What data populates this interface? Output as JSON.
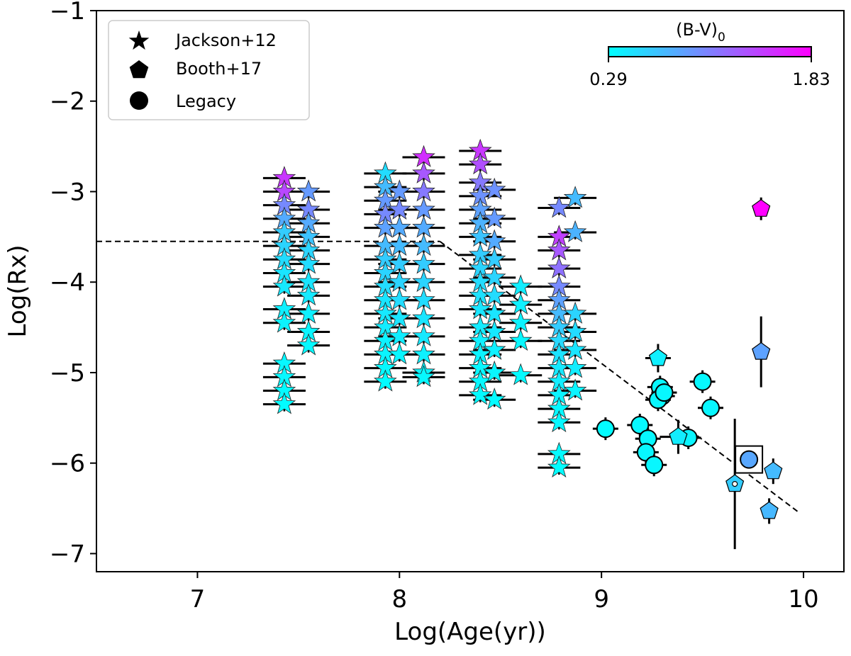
{
  "chart_data": {
    "type": "scatter",
    "xlabel": "Log(Age(yr))",
    "ylabel": "Log(Rx)",
    "xlim": [
      6.5,
      10.2
    ],
    "ylim": [
      -7.2,
      -1.0
    ],
    "xticks": [
      7,
      8,
      9,
      10
    ],
    "yticks": [
      -1,
      -2,
      -3,
      -4,
      -5,
      -6,
      -7
    ],
    "xtick_labels": [
      "7",
      "8",
      "9",
      "10"
    ],
    "ytick_labels": [
      "−1",
      "−2",
      "−3",
      "−4",
      "−5",
      "−6",
      "−7"
    ],
    "grid": false,
    "legend": {
      "position": "top-left",
      "entries": [
        {
          "label": "Jackson+12",
          "marker": "star"
        },
        {
          "label": "Booth+17",
          "marker": "pentagon"
        },
        {
          "label": "Legacy",
          "marker": "circle"
        }
      ]
    },
    "colorbar": {
      "label": "(B-V)",
      "label_subscript": "0",
      "min": 0.29,
      "max": 1.83,
      "min_label": "0.29",
      "max_label": "1.83",
      "cmap_start": "#00ffff",
      "cmap_end": "#ff00ff",
      "position": "top-right"
    },
    "fit_line": {
      "style": "dashed",
      "segments": [
        {
          "x": [
            6.5,
            8.2
          ],
          "y": [
            -3.55,
            -3.55
          ]
        },
        {
          "x": [
            8.2,
            9.98
          ],
          "y": [
            -3.55,
            -6.55
          ]
        }
      ]
    },
    "series": [
      {
        "name": "Jackson+12",
        "marker": "star",
        "clusters": [
          {
            "x": 7.43,
            "y": [
              -2.85,
              -3.0,
              -3.15,
              -3.3,
              -3.45,
              -3.6,
              -3.75,
              -3.9,
              -4.05,
              -4.3,
              -4.45,
              -4.9,
              -5.05,
              -5.2,
              -5.35
            ],
            "bv": [
              1.5,
              1.4,
              1.0,
              0.8,
              0.6,
              0.55,
              0.5,
              0.45,
              0.42,
              0.38,
              0.36,
              0.34,
              0.33,
              0.32,
              0.31
            ]
          },
          {
            "x": 7.55,
            "y": [
              -3.0,
              -3.2,
              -3.35,
              -3.5,
              -3.65,
              -3.8,
              -4.0,
              -4.15,
              -4.35,
              -4.55,
              -4.7
            ],
            "bv": [
              0.9,
              1.0,
              0.8,
              0.65,
              0.55,
              0.5,
              0.45,
              0.42,
              0.38,
              0.35,
              0.33
            ]
          },
          {
            "x": 7.93,
            "y": [
              -2.8,
              -2.95,
              -3.1,
              -3.25,
              -3.4,
              -3.6,
              -3.75,
              -3.9,
              -4.05,
              -4.2,
              -4.35,
              -4.5,
              -4.65,
              -4.8,
              -4.95,
              -5.1
            ],
            "bv": [
              0.5,
              0.7,
              0.9,
              1.0,
              0.85,
              0.7,
              0.6,
              0.55,
              0.5,
              0.45,
              0.42,
              0.4,
              0.37,
              0.35,
              0.33,
              0.31
            ]
          },
          {
            "x": 8.0,
            "y": [
              -3.0,
              -3.2,
              -3.4,
              -3.6,
              -3.8,
              -4.0,
              -4.2,
              -4.4,
              -4.6,
              -4.8
            ],
            "bv": [
              0.9,
              1.0,
              0.8,
              0.7,
              0.6,
              0.55,
              0.5,
              0.45,
              0.4,
              0.35
            ]
          },
          {
            "x": 8.12,
            "y": [
              -2.62,
              -2.8,
              -3.0,
              -3.2,
              -3.4,
              -3.6,
              -3.8,
              -4.0,
              -4.2,
              -4.4,
              -4.6,
              -4.8,
              -5.0,
              -5.05
            ],
            "bv": [
              1.55,
              1.3,
              1.1,
              0.9,
              0.8,
              0.7,
              0.6,
              0.55,
              0.5,
              0.45,
              0.42,
              0.38,
              0.35,
              0.33
            ]
          },
          {
            "x": 8.4,
            "y": [
              -2.55,
              -2.7,
              -2.9,
              -3.05,
              -3.2,
              -3.35,
              -3.5,
              -3.7,
              -3.85,
              -4.0,
              -4.15,
              -4.3,
              -4.5,
              -4.65,
              -4.8,
              -4.95,
              -5.1,
              -5.25
            ],
            "bv": [
              1.5,
              1.35,
              1.1,
              0.95,
              0.85,
              0.75,
              0.65,
              0.6,
              0.55,
              0.5,
              0.47,
              0.44,
              0.41,
              0.38,
              0.36,
              0.34,
              0.33,
              0.32
            ]
          },
          {
            "x": 8.47,
            "y": [
              -2.98,
              -3.3,
              -3.55,
              -3.75,
              -3.95,
              -4.15,
              -4.35,
              -4.55,
              -4.75,
              -5.0,
              -5.3
            ],
            "bv": [
              0.95,
              0.9,
              0.8,
              0.6,
              0.55,
              0.5,
              0.45,
              0.42,
              0.38,
              0.35,
              0.32
            ]
          },
          {
            "x": 8.6,
            "y": [
              -4.05,
              -4.25,
              -4.45,
              -4.65,
              -5.03
            ],
            "bv": [
              0.4,
              0.38,
              0.36,
              0.34,
              0.32
            ]
          },
          {
            "x": 8.79,
            "y": [
              -3.18,
              -3.5,
              -3.65,
              -3.85,
              -4.05,
              -4.2,
              -4.35,
              -4.5,
              -4.65,
              -4.8,
              -4.95,
              -5.1,
              -5.25,
              -5.4,
              -5.55,
              -5.9,
              -6.05
            ],
            "bv": [
              1.0,
              1.45,
              1.3,
              1.15,
              1.0,
              0.85,
              0.7,
              0.6,
              0.52,
              0.46,
              0.42,
              0.39,
              0.36,
              0.34,
              0.33,
              0.32,
              0.31
            ]
          },
          {
            "x": 8.87,
            "y": [
              -3.07,
              -3.45,
              -4.35,
              -4.55,
              -4.75,
              -4.95,
              -5.2
            ],
            "bv": [
              0.7,
              0.75,
              0.55,
              0.5,
              0.45,
              0.4,
              0.36
            ]
          }
        ]
      },
      {
        "name": "Booth+17",
        "marker": "pentagon",
        "points": [
          {
            "x": 9.28,
            "y": -4.84,
            "bv": 0.38
          },
          {
            "x": 9.38,
            "y": -5.71,
            "bv": 0.4
          },
          {
            "x": 9.66,
            "y": -6.23,
            "bv": 0.6
          },
          {
            "x": 9.79,
            "y": -3.19,
            "bv": 1.83
          },
          {
            "x": 9.79,
            "y": -4.77,
            "bv": 0.85
          },
          {
            "x": 9.85,
            "y": -6.09,
            "bv": 0.7
          },
          {
            "x": 9.83,
            "y": -6.53,
            "bv": 0.72
          }
        ]
      },
      {
        "name": "Legacy",
        "marker": "circle",
        "points": [
          {
            "x": 9.02,
            "y": -5.62,
            "bv": 0.31
          },
          {
            "x": 9.19,
            "y": -5.58,
            "bv": 0.33
          },
          {
            "x": 9.23,
            "y": -5.73,
            "bv": 0.33
          },
          {
            "x": 9.22,
            "y": -5.88,
            "bv": 0.34
          },
          {
            "x": 9.26,
            "y": -6.02,
            "bv": 0.34
          },
          {
            "x": 9.29,
            "y": -5.16,
            "bv": 0.33
          },
          {
            "x": 9.3,
            "y": -5.26,
            "bv": 0.33
          },
          {
            "x": 9.28,
            "y": -5.3,
            "bv": 0.34
          },
          {
            "x": 9.31,
            "y": -5.22,
            "bv": 0.33
          },
          {
            "x": 9.43,
            "y": -5.72,
            "bv": 0.35
          },
          {
            "x": 9.5,
            "y": -5.1,
            "bv": 0.33
          },
          {
            "x": 9.54,
            "y": -5.39,
            "bv": 0.34
          },
          {
            "x": 9.73,
            "y": -5.96,
            "bv": 0.82
          }
        ]
      }
    ],
    "highlighted": [
      {
        "x": 9.73,
        "y": -5.96,
        "shape": "square"
      },
      {
        "x": 9.66,
        "y": -6.23,
        "shape": "dot"
      }
    ]
  }
}
